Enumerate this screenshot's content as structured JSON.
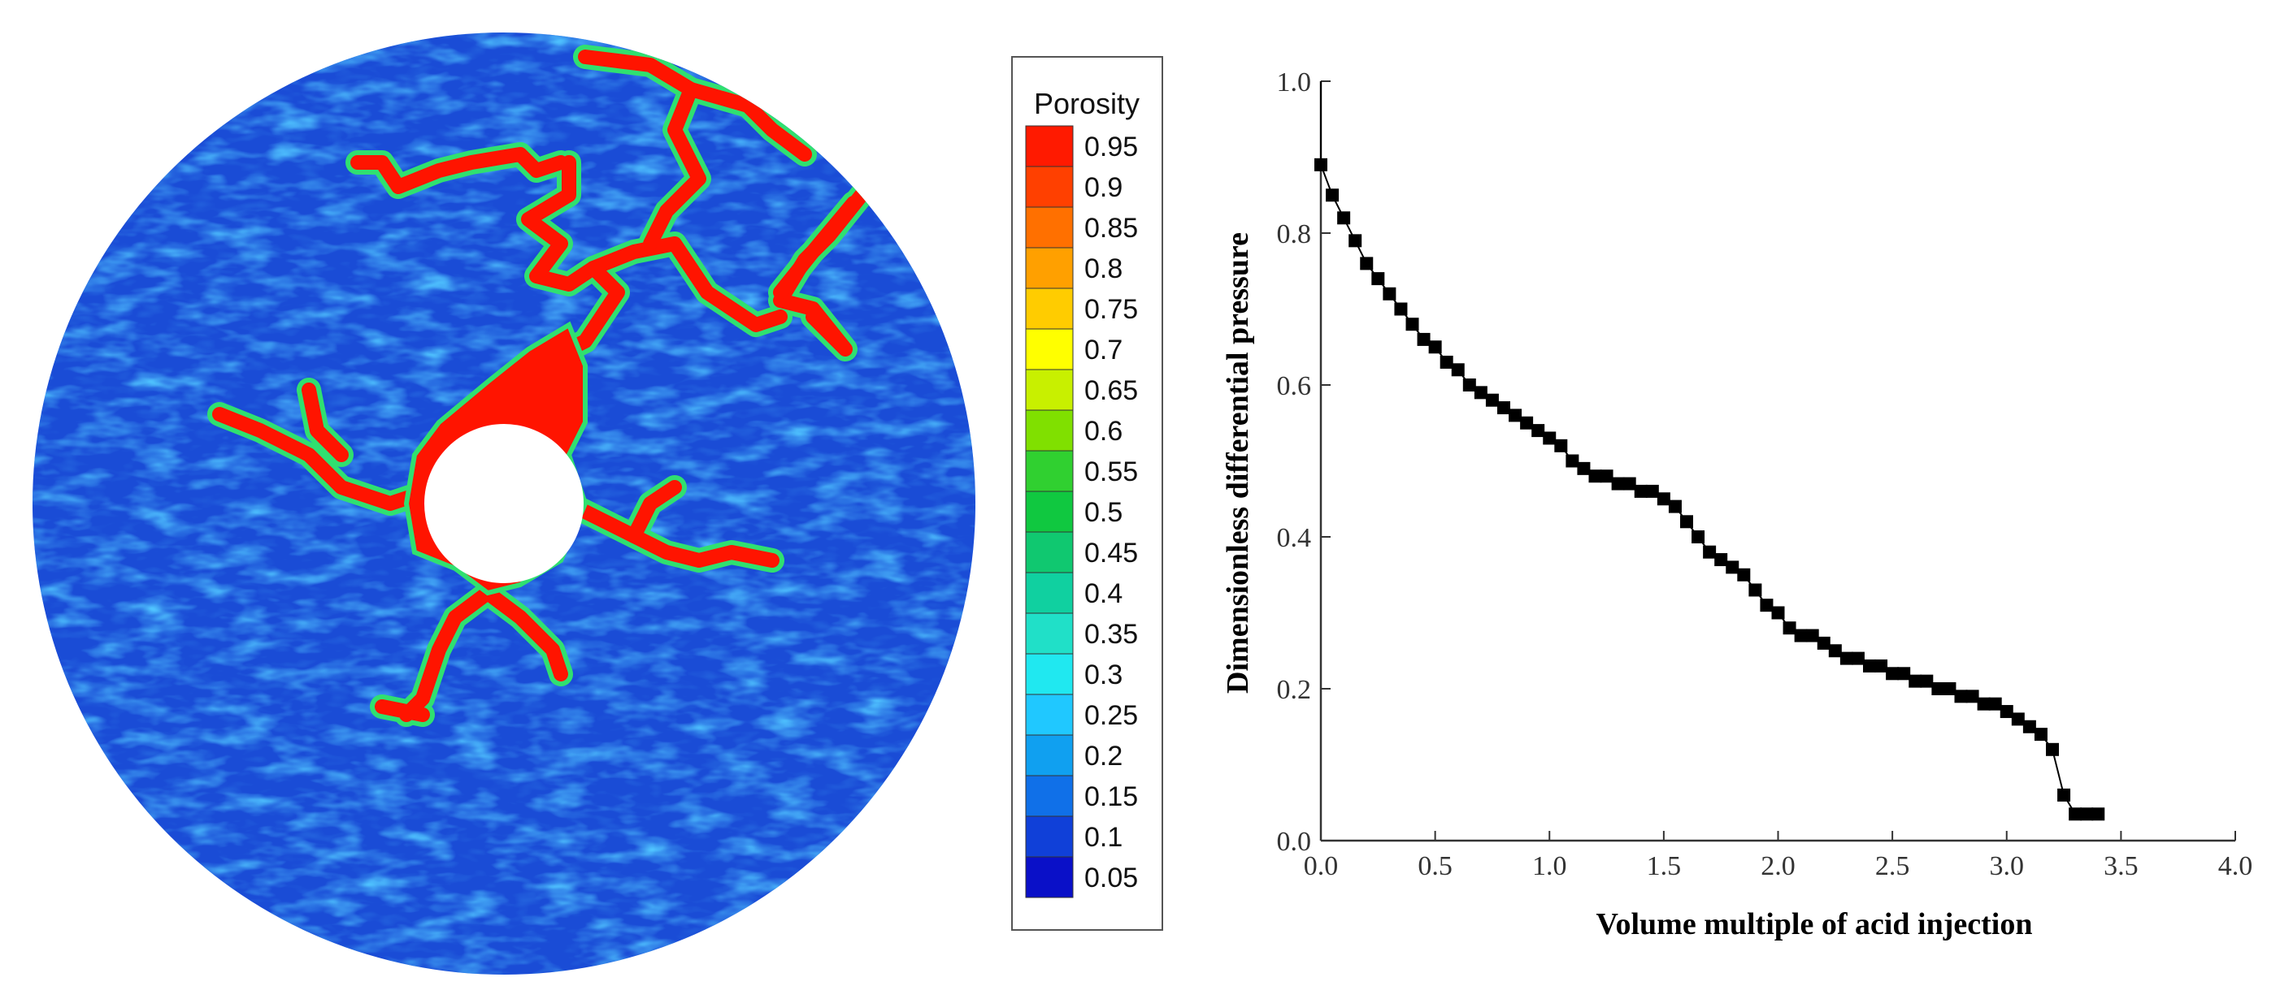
{
  "porosity_map": {
    "legend_title": "Porosity",
    "legend_levels": [
      "0.95",
      "0.9",
      "0.85",
      "0.8",
      "0.75",
      "0.7",
      "0.65",
      "0.6",
      "0.55",
      "0.5",
      "0.45",
      "0.4",
      "0.35",
      "0.3",
      "0.25",
      "0.2",
      "0.15",
      "0.1",
      "0.05"
    ],
    "legend_colors": [
      "#ff1a00",
      "#ff4000",
      "#ff7000",
      "#ffa000",
      "#ffcc00",
      "#ffff00",
      "#c8f000",
      "#80e000",
      "#30d030",
      "#10c840",
      "#10c870",
      "#10d0a0",
      "#20e0c8",
      "#20e8f0",
      "#20c8ff",
      "#10a0f0",
      "#1070e8",
      "#1040d8",
      "#0a10c8"
    ],
    "background_color": "#1a4cd6",
    "wormhole_color": "#ff1400"
  },
  "chart_data": {
    "type": "scatter",
    "title": "",
    "xlabel": "Volume multiple of acid injection",
    "ylabel": "Dimensionless differential pressure",
    "xlim": [
      0.0,
      4.0
    ],
    "ylim": [
      0.0,
      1.0
    ],
    "xticks": [
      "0.0",
      "0.5",
      "1.0",
      "1.5",
      "2.0",
      "2.5",
      "3.0",
      "3.5",
      "4.0"
    ],
    "yticks": [
      "0.0",
      "0.2",
      "0.4",
      "0.6",
      "0.8",
      "1.0"
    ],
    "marker": "square",
    "marker_color": "#000000",
    "grid": false,
    "x": [
      0.0,
      0.05,
      0.1,
      0.15,
      0.2,
      0.25,
      0.3,
      0.35,
      0.4,
      0.45,
      0.5,
      0.55,
      0.6,
      0.65,
      0.7,
      0.75,
      0.8,
      0.85,
      0.9,
      0.95,
      1.0,
      1.05,
      1.1,
      1.15,
      1.2,
      1.25,
      1.3,
      1.35,
      1.4,
      1.45,
      1.5,
      1.55,
      1.6,
      1.65,
      1.7,
      1.75,
      1.8,
      1.85,
      1.9,
      1.95,
      2.0,
      2.05,
      2.1,
      2.15,
      2.2,
      2.25,
      2.3,
      2.35,
      2.4,
      2.45,
      2.5,
      2.55,
      2.6,
      2.65,
      2.7,
      2.75,
      2.8,
      2.85,
      2.9,
      2.95,
      3.0,
      3.05,
      3.1,
      3.15,
      3.2,
      3.25,
      3.3,
      3.35,
      3.4
    ],
    "y": [
      0.89,
      0.85,
      0.82,
      0.79,
      0.76,
      0.74,
      0.72,
      0.7,
      0.68,
      0.66,
      0.65,
      0.63,
      0.62,
      0.6,
      0.59,
      0.58,
      0.57,
      0.56,
      0.55,
      0.54,
      0.53,
      0.52,
      0.5,
      0.49,
      0.48,
      0.48,
      0.47,
      0.47,
      0.46,
      0.46,
      0.45,
      0.44,
      0.42,
      0.4,
      0.38,
      0.37,
      0.36,
      0.35,
      0.33,
      0.31,
      0.3,
      0.28,
      0.27,
      0.27,
      0.26,
      0.25,
      0.24,
      0.24,
      0.23,
      0.23,
      0.22,
      0.22,
      0.21,
      0.21,
      0.2,
      0.2,
      0.19,
      0.19,
      0.18,
      0.18,
      0.17,
      0.16,
      0.15,
      0.14,
      0.12,
      0.06,
      0.035,
      0.035,
      0.035
    ]
  }
}
